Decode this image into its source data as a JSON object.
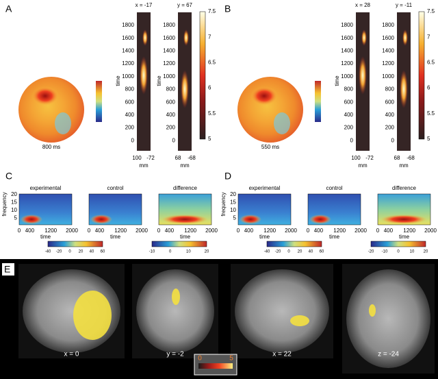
{
  "panels": {
    "A": {
      "label": "A",
      "scalp_caption": "800 ms",
      "slices": [
        {
          "title": "x = -17",
          "ylabel": "time",
          "yticks": [
            1800,
            1600,
            1400,
            1200,
            1000,
            800,
            600,
            400,
            200,
            0
          ],
          "xticks": [
            100,
            -72
          ],
          "xlabel": "mm"
        },
        {
          "title": "y = 67",
          "ylabel": "time",
          "yticks": [
            1800,
            1600,
            1400,
            1200,
            1000,
            800,
            600,
            400,
            200,
            0
          ],
          "xticks": [
            68,
            -68
          ],
          "xlabel": "mm"
        }
      ],
      "colorbar_ticks": [
        7.5,
        7,
        6.5,
        6,
        5.5,
        5
      ]
    },
    "B": {
      "label": "B",
      "scalp_caption": "550 ms",
      "slices": [
        {
          "title": "x = 28",
          "ylabel": "time",
          "yticks": [
            1800,
            1600,
            1400,
            1200,
            1000,
            800,
            600,
            400,
            200,
            0
          ],
          "xticks": [
            100,
            -72
          ],
          "xlabel": "mm"
        },
        {
          "title": "y = -11",
          "yticks": [
            1800,
            1600,
            1400,
            1200,
            1000,
            800,
            600,
            400,
            200,
            0
          ],
          "xticks": [
            68,
            -68
          ],
          "xlabel": "mm"
        }
      ],
      "colorbar_ticks": [
        7.5,
        7,
        6.5,
        6,
        5.5,
        5
      ]
    },
    "C": {
      "label": "C",
      "ylabel": "frequency",
      "yticks": [
        20,
        15,
        10,
        5
      ],
      "xticks": [
        0,
        400,
        1200,
        2000
      ],
      "xlabel": "time",
      "plots": [
        "experimental",
        "control",
        "difference"
      ],
      "colorbars": [
        [
          -40,
          -20,
          0,
          20,
          40,
          60
        ],
        [
          -10,
          0,
          10,
          20
        ]
      ]
    },
    "D": {
      "label": "D",
      "ylabel": "frequency",
      "yticks": [
        20,
        15,
        10,
        5
      ],
      "xticks": [
        0,
        400,
        1200,
        2000
      ],
      "xlabel": "time",
      "plots": [
        "experimental",
        "control",
        "difference"
      ],
      "colorbars": [
        [
          -40,
          -20,
          0,
          20,
          40,
          60
        ],
        [
          -20,
          -10,
          0,
          10,
          20
        ]
      ]
    },
    "E": {
      "label": "E",
      "slices": [
        "x = 0",
        "y = -2",
        "x = 22",
        "z = -24"
      ],
      "colorbar_ticks": [
        0,
        5
      ]
    }
  }
}
